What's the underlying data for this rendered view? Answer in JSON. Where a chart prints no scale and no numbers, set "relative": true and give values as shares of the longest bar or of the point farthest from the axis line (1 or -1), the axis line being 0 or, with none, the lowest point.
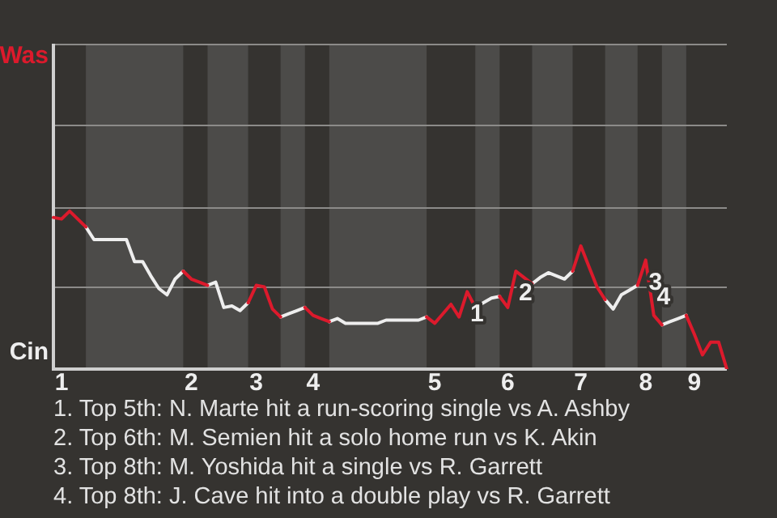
{
  "chart_data": {
    "type": "line",
    "relative": true,
    "categories": [
      null,
      "1",
      null,
      null,
      null,
      null,
      null,
      null,
      null,
      null,
      null,
      null,
      null,
      null,
      null,
      null,
      null,
      "2",
      null,
      null,
      null,
      null,
      null,
      null,
      null,
      "3",
      null,
      null,
      null,
      null,
      null,
      null,
      "4",
      null,
      null,
      null,
      null,
      null,
      null,
      null,
      null,
      null,
      null,
      null,
      null,
      null,
      null,
      "5",
      null,
      null,
      null,
      null,
      null,
      null,
      null,
      null,
      "6",
      null,
      null,
      null,
      null,
      null,
      null,
      null,
      null,
      "7",
      null,
      null,
      null,
      null,
      null,
      null,
      null,
      "8",
      null,
      null,
      null,
      null,
      null,
      "9",
      null,
      null,
      null,
      null
    ],
    "series": [
      {
        "name": "Was",
        "color": "#dc1a2c",
        "values": [
          0.96,
          0.95,
          1,
          0.95,
          0.9,
          null,
          null,
          null,
          null,
          null,
          null,
          null,
          null,
          null,
          null,
          null,
          0.62,
          0.57,
          0.55,
          0.53,
          null,
          null,
          null,
          null,
          0.42,
          0.53,
          0.52,
          0.38,
          0.33,
          null,
          null,
          0.39,
          0.34,
          0.32,
          0.3,
          null,
          null,
          null,
          null,
          null,
          null,
          null,
          null,
          null,
          null,
          null,
          0.33,
          0.29,
          0.35,
          0.41,
          0.33,
          0.49,
          0.39,
          null,
          null,
          0.46,
          0.39,
          0.62,
          0.58,
          0.54,
          null,
          null,
          null,
          null,
          0.62,
          0.78,
          0.65,
          0.52,
          0.44,
          null,
          null,
          null,
          0.53,
          0.69,
          0.34,
          0.28,
          null,
          null,
          0.34,
          0.22,
          0.09,
          0.17,
          0.17,
          0
        ]
      },
      {
        "name": "Cin",
        "color": "#eeeeee",
        "values": [
          null,
          null,
          null,
          null,
          0.9,
          0.82,
          0.82,
          0.82,
          0.82,
          0.82,
          0.68,
          0.68,
          0.59,
          0.51,
          0.47,
          0.57,
          0.62,
          null,
          null,
          0.53,
          0.55,
          0.39,
          0.4,
          0.37,
          0.42,
          null,
          null,
          null,
          0.33,
          0.35,
          0.37,
          0.39,
          null,
          null,
          0.3,
          0.32,
          0.29,
          0.29,
          0.29,
          0.29,
          0.29,
          0.31,
          0.31,
          0.31,
          0.31,
          0.31,
          0.33,
          null,
          null,
          null,
          null,
          null,
          0.39,
          0.42,
          0.45,
          0.46,
          null,
          null,
          null,
          0.54,
          0.58,
          0.61,
          0.59,
          0.57,
          0.62,
          null,
          null,
          null,
          0.44,
          0.38,
          0.47,
          0.5,
          0.53,
          null,
          null,
          0.28,
          0.3,
          0.32,
          0.34,
          null,
          null,
          null,
          null,
          null
        ]
      }
    ],
    "ref_lines": [
      {
        "axis": "y",
        "value": 0.52,
        "color": "#8c8b89"
      },
      {
        "axis": "y",
        "value": 1.03,
        "color": "#8c8b89"
      },
      {
        "axis": "y",
        "value": 1.55,
        "color": "#8c8b89"
      },
      {
        "axis": "y",
        "value": 2.06,
        "color": "#8c8b89"
      }
    ],
    "annotations": [
      {
        "text": "1",
        "y": 0.49
      },
      {
        "text": "2",
        "y": 0.62
      },
      {
        "text": "3",
        "y": 0.69
      },
      {
        "text": "4",
        "y": 0.34
      },
      "1. Top 5th: N. Marte hit a run-scoring single vs A. Ashby",
      "2. Top 6th: M. Semien hit a solo home run vs K. Akin",
      "3. Top 8th: M. Yoshida hit a single vs R. Garrett",
      "4. Top 8th: J. Cave hit into a double play vs R. Garrett"
    ],
    "legend": false,
    "marker": "none"
  }
}
